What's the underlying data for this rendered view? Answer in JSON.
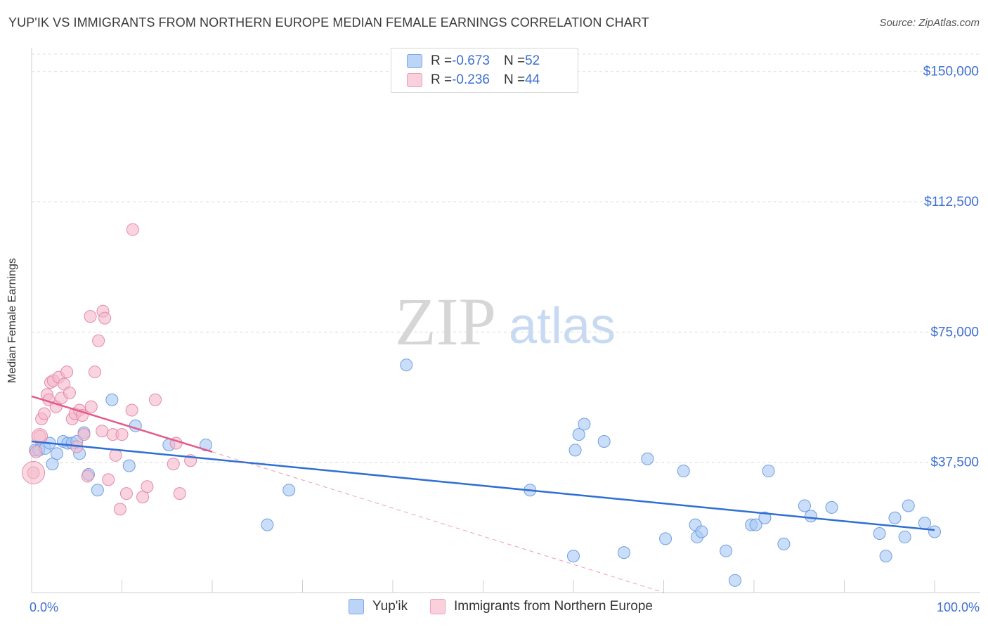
{
  "title": "YUP'IK VS IMMIGRANTS FROM NORTHERN EUROPE MEDIAN FEMALE EARNINGS CORRELATION CHART",
  "source": "Source: ZipAtlas.com",
  "watermark": {
    "zip": "ZIP",
    "atlas": "atlas"
  },
  "legend": {
    "rows": [
      {
        "r_label": "R = ",
        "r_value": "-0.673",
        "n_label": "N = ",
        "n_value": "52",
        "color": "#a9c8f5"
      },
      {
        "r_label": "R = ",
        "r_value": "-0.236",
        "n_label": "N = ",
        "n_value": "44",
        "color": "#f5b8cb"
      }
    ]
  },
  "bottom_legend": [
    {
      "label": "Yup'ik",
      "color": "#a9c8f5"
    },
    {
      "label": "Immigrants from Northern Europe",
      "color": "#f5b8cb"
    }
  ],
  "chart_data": {
    "type": "scatter",
    "title": "YUP'IK VS IMMIGRANTS FROM NORTHERN EUROPE MEDIAN FEMALE EARNINGS CORRELATION CHART",
    "xlabel": "",
    "ylabel": "Median Female Earnings",
    "xlim": [
      0,
      100
    ],
    "ylim": [
      0,
      155000
    ],
    "x_tick_labels": [
      "0.0%",
      "100.0%"
    ],
    "y_ticks": [
      37500,
      75000,
      112500,
      150000
    ],
    "y_tick_labels": [
      "$37,500",
      "$75,000",
      "$112,500",
      "$150,000"
    ],
    "grid": true,
    "legend_position": "top-center",
    "series": [
      {
        "name": "Yup'ik",
        "color": "#a9c8f5",
        "stroke": "#6e9fe0",
        "line_color": "#2f6fd3",
        "trend": {
          "x": [
            0,
            100
          ],
          "y": [
            43500,
            18000
          ],
          "dashed_beyond": null
        },
        "points": [
          [
            0.4,
            41000
          ],
          [
            0.8,
            41000
          ],
          [
            1.5,
            41500
          ],
          [
            2.0,
            43000
          ],
          [
            2.3,
            37000
          ],
          [
            2.8,
            40000
          ],
          [
            3.5,
            43500
          ],
          [
            4.0,
            43000
          ],
          [
            4.5,
            43000
          ],
          [
            5.0,
            43500
          ],
          [
            5.3,
            40000
          ],
          [
            5.8,
            46000
          ],
          [
            6.3,
            34000
          ],
          [
            7.3,
            29500
          ],
          [
            8.9,
            55500
          ],
          [
            10.8,
            36500
          ],
          [
            11.5,
            48000
          ],
          [
            15.2,
            42500
          ],
          [
            19.3,
            42500
          ],
          [
            26.1,
            19500
          ],
          [
            28.5,
            29500
          ],
          [
            41.5,
            65500
          ],
          [
            55.2,
            29500
          ],
          [
            60.0,
            10500
          ],
          [
            60.2,
            41000
          ],
          [
            60.6,
            45500
          ],
          [
            61.2,
            48500
          ],
          [
            63.4,
            43500
          ],
          [
            65.6,
            11500
          ],
          [
            68.2,
            38500
          ],
          [
            70.2,
            15500
          ],
          [
            72.2,
            35000
          ],
          [
            73.5,
            19500
          ],
          [
            73.7,
            16000
          ],
          [
            74.2,
            17500
          ],
          [
            76.9,
            12000
          ],
          [
            77.9,
            3500
          ],
          [
            79.7,
            19500
          ],
          [
            80.2,
            19500
          ],
          [
            81.2,
            21500
          ],
          [
            81.6,
            35000
          ],
          [
            83.3,
            14000
          ],
          [
            85.6,
            25000
          ],
          [
            86.3,
            22000
          ],
          [
            88.6,
            24500
          ],
          [
            93.9,
            17000
          ],
          [
            94.6,
            10500
          ],
          [
            95.6,
            21500
          ],
          [
            96.7,
            16000
          ],
          [
            97.1,
            25000
          ],
          [
            98.9,
            20000
          ],
          [
            100.0,
            17500
          ]
        ]
      },
      {
        "name": "Immigrants from Northern Europe",
        "color": "#f5b8cb",
        "stroke": "#e48aa8",
        "line_color": "#e55a8a",
        "trend": {
          "x": [
            0,
            20.0
          ],
          "y": [
            56500,
            40500
          ],
          "dashed_to": [
            70,
            0
          ]
        },
        "points": [
          [
            0.2,
            34500
          ],
          [
            0.5,
            40500
          ],
          [
            0.9,
            45000
          ],
          [
            1.1,
            50000
          ],
          [
            1.4,
            51500
          ],
          [
            1.7,
            57000
          ],
          [
            1.9,
            55500
          ],
          [
            2.1,
            60500
          ],
          [
            2.4,
            61000
          ],
          [
            2.7,
            53500
          ],
          [
            3.0,
            62000
          ],
          [
            3.3,
            56000
          ],
          [
            3.6,
            60000
          ],
          [
            3.9,
            63500
          ],
          [
            4.2,
            57500
          ],
          [
            4.5,
            50000
          ],
          [
            4.8,
            51500
          ],
          [
            5.0,
            42000
          ],
          [
            5.3,
            52500
          ],
          [
            5.6,
            51000
          ],
          [
            5.8,
            45500
          ],
          [
            6.2,
            33500
          ],
          [
            6.6,
            53500
          ],
          [
            6.5,
            79500
          ],
          [
            7.0,
            63500
          ],
          [
            7.4,
            72500
          ],
          [
            7.8,
            46500
          ],
          [
            7.9,
            81000
          ],
          [
            8.1,
            79000
          ],
          [
            8.5,
            32500
          ],
          [
            9.0,
            45500
          ],
          [
            9.3,
            39500
          ],
          [
            9.8,
            24000
          ],
          [
            10.0,
            45500
          ],
          [
            10.5,
            28500
          ],
          [
            11.2,
            104500
          ],
          [
            11.1,
            52500
          ],
          [
            12.3,
            27500
          ],
          [
            12.8,
            30500
          ],
          [
            13.7,
            55500
          ],
          [
            15.7,
            37000
          ],
          [
            16.0,
            43000
          ],
          [
            16.4,
            28500
          ],
          [
            17.6,
            38000
          ]
        ]
      }
    ]
  }
}
